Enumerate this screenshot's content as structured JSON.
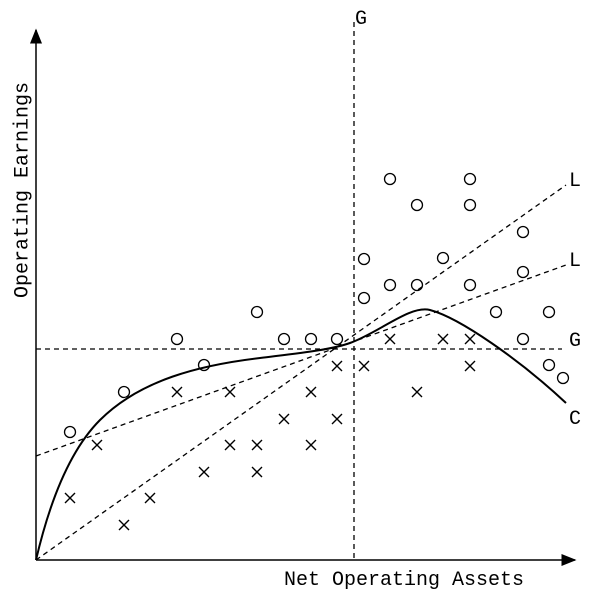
{
  "axes": {
    "x_label": "Net Operating Assets",
    "y_label": "Operating Earnings"
  },
  "lines": [
    {
      "label": "G"
    },
    {
      "label": "G"
    },
    {
      "label": "L"
    },
    {
      "label": "L"
    },
    {
      "label": "C"
    }
  ]
}
